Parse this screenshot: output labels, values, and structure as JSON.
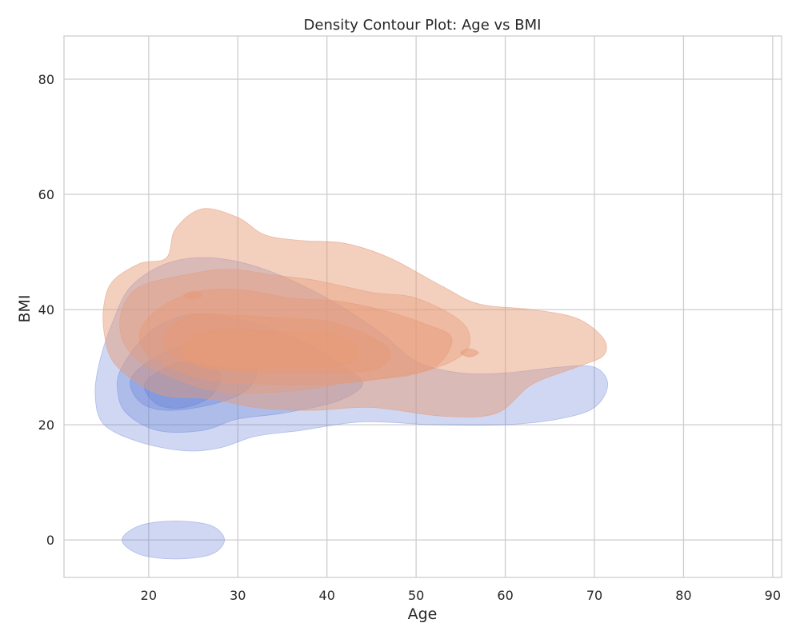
{
  "chart_data": {
    "type": "contour",
    "title": "Density Contour Plot: Age vs BMI",
    "xlabel": "Age",
    "ylabel": "BMI",
    "xlim": [
      10.5,
      91
    ],
    "ylim": [
      -6.5,
      87.5
    ],
    "xticks": [
      20,
      30,
      40,
      50,
      60,
      70,
      80,
      90
    ],
    "yticks": [
      0,
      20,
      40,
      60,
      80
    ],
    "grid": true,
    "legend": "none",
    "series": [
      {
        "color": "#6a84d8",
        "levels": [
          {
            "opacity": 0.32,
            "polygons": [
              [
                [
                  16,
                  38
                ],
                [
                  18,
                  44
                ],
                [
                  22,
                  48
                ],
                [
                  27,
                  49
                ],
                [
                  33,
                  47
                ],
                [
                  40,
                  42
                ],
                [
                  46,
                  36
                ],
                [
                  50,
                  31
                ],
                [
                  55,
                  29
                ],
                [
                  60,
                  29
                ],
                [
                  66,
                  30
                ],
                [
                  70,
                  30
                ],
                [
                  71.5,
                  27
                ],
                [
                  70,
                  23
                ],
                [
                  66,
                  21
                ],
                [
                  60,
                  20
                ],
                [
                  52,
                  20
                ],
                [
                  44,
                  20.5
                ],
                [
                  37,
                  19
                ],
                [
                  32,
                  18
                ],
                [
                  28,
                  16
                ],
                [
                  24,
                  15.5
                ],
                [
                  19,
                  17
                ],
                [
                  15,
                  20
                ],
                [
                  14,
                  25
                ],
                [
                  14.5,
                  31
                ]
              ],
              [
                [
                  17,
                  0
                ],
                [
                  19,
                  2.5
                ],
                [
                  23,
                  3.3
                ],
                [
                  27,
                  2.5
                ],
                [
                  28.5,
                  0
                ],
                [
                  27,
                  -2.5
                ],
                [
                  23,
                  -3.3
                ],
                [
                  19,
                  -2.5
                ]
              ]
            ]
          },
          {
            "opacity": 0.32,
            "polygons": [
              [
                [
                  17,
                  30
                ],
                [
                  20,
                  36
                ],
                [
                  24,
                  39
                ],
                [
                  28,
                  39
                ],
                [
                  33,
                  37
                ],
                [
                  38,
                  34
                ],
                [
                  42,
                  30
                ],
                [
                  44,
                  27
                ],
                [
                  41,
                  24
                ],
                [
                  35,
                  22
                ],
                [
                  30,
                  21
                ],
                [
                  26,
                  19
                ],
                [
                  21,
                  19
                ],
                [
                  17.5,
                  22
                ],
                [
                  16.5,
                  26
                ]
              ]
            ]
          },
          {
            "opacity": 0.36,
            "polygons": [
              [
                [
                  18,
                  28
                ],
                [
                  21,
                  32
                ],
                [
                  25,
                  34
                ],
                [
                  29,
                  33
                ],
                [
                  32,
                  30
                ],
                [
                  31,
                  26
                ],
                [
                  27,
                  23.5
                ],
                [
                  22,
                  22.5
                ],
                [
                  19,
                  24
                ]
              ]
            ]
          },
          {
            "opacity": 0.4,
            "polygons": [
              [
                [
                  19.5,
                  27
                ],
                [
                  22,
                  30
                ],
                [
                  25,
                  31
                ],
                [
                  28,
                  29
                ],
                [
                  27,
                  25
                ],
                [
                  24,
                  23
                ],
                [
                  21,
                  23.5
                ]
              ]
            ]
          }
        ]
      },
      {
        "color": "#e69a77",
        "levels": [
          {
            "opacity": 0.48,
            "polygons": [
              [
                [
                  16,
                  45
                ],
                [
                  19,
                  48
                ],
                [
                  22,
                  49
                ],
                [
                  23,
                  54
                ],
                [
                  26,
                  57.5
                ],
                [
                  30,
                  56
                ],
                [
                  33,
                  53
                ],
                [
                  37,
                  52
                ],
                [
                  42,
                  51.5
                ],
                [
                  47,
                  49
                ],
                [
                  53,
                  44
                ],
                [
                  57,
                  41
                ],
                [
                  63,
                  40
                ],
                [
                  68,
                  38.5
                ],
                [
                  71,
                  35
                ],
                [
                  71,
                  32
                ],
                [
                  68,
                  30
                ],
                [
                  63,
                  27
                ],
                [
                  59,
                  22
                ],
                [
                  53,
                  21.5
                ],
                [
                  45,
                  23
                ],
                [
                  38,
                  22.5
                ],
                [
                  32,
                  23
                ],
                [
                  27,
                  24.5
                ],
                [
                  22,
                  25
                ],
                [
                  19,
                  27
                ],
                [
                  16,
                  31
                ],
                [
                  15,
                  36
                ],
                [
                  15,
                  41
                ]
              ]
            ]
          },
          {
            "opacity": 0.4,
            "polygons": [
              [
                [
                  19,
                  44
                ],
                [
                  24,
                  46
                ],
                [
                  29,
                  47
                ],
                [
                  34,
                  46
                ],
                [
                  39,
                  45
                ],
                [
                  45,
                  43
                ],
                [
                  50,
                  42
                ],
                [
                  55,
                  38
                ],
                [
                  56,
                  34
                ],
                [
                  54,
                  31
                ],
                [
                  49,
                  28.5
                ],
                [
                  43,
                  27.5
                ],
                [
                  37,
                  26
                ],
                [
                  31,
                  25.5
                ],
                [
                  27,
                  26
                ],
                [
                  23,
                  28
                ],
                [
                  19,
                  31
                ],
                [
                  17,
                  35
                ],
                [
                  17,
                  40
                ]
              ]
            ]
          },
          {
            "opacity": 0.45,
            "polygons": [
              [
                [
                  21,
                  40
                ],
                [
                  25,
                  43
                ],
                [
                  30,
                  43.5
                ],
                [
                  36,
                  42
                ],
                [
                  41,
                  41.5
                ],
                [
                  46,
                  40
                ],
                [
                  51,
                  37.5
                ],
                [
                  54,
                  35
                ],
                [
                  52,
                  30
                ],
                [
                  46,
                  28
                ],
                [
                  40,
                  27
                ],
                [
                  34,
                  27
                ],
                [
                  28,
                  27.5
                ],
                [
                  24,
                  29
                ],
                [
                  20,
                  32
                ],
                [
                  19,
                  36
                ]
              ]
            ]
          },
          {
            "opacity": 0.5,
            "polygons": [
              [
                [
                  22,
                  36
                ],
                [
                  25,
                  39
                ],
                [
                  30,
                  39
                ],
                [
                  35,
                  38.5
                ],
                [
                  40,
                  38
                ],
                [
                  44,
                  36
                ],
                [
                  47,
                  33
                ],
                [
                  46,
                  30
                ],
                [
                  42,
                  29
                ],
                [
                  37,
                  29
                ],
                [
                  32,
                  29
                ],
                [
                  28,
                  30
                ],
                [
                  24,
                  31
                ],
                [
                  22,
                  33
                ]
              ]
            ]
          },
          {
            "opacity": 0.55,
            "polygons": [
              [
                [
                  24,
                  34
                ],
                [
                  26,
                  36
                ],
                [
                  30,
                  36.5
                ],
                [
                  35,
                  36
                ],
                [
                  40,
                  36
                ],
                [
                  43,
                  34
                ],
                [
                  43,
                  31
                ],
                [
                  39,
                  30
                ],
                [
                  34,
                  30
                ],
                [
                  30,
                  29.5
                ],
                [
                  26,
                  30
                ],
                [
                  24,
                  32
                ]
              ]
            ]
          },
          {
            "opacity": 0.45,
            "polygons": [
              [
                [
                  24,
                  42.5
                ],
                [
                  25,
                  43.2
                ],
                [
                  26,
                  42.5
                ],
                [
                  25,
                  41.8
                ]
              ]
            ]
          },
          {
            "opacity": 0.55,
            "polygons": [
              [
                [
                  55,
                  32.5
                ],
                [
                  56,
                  33.2
                ],
                [
                  57,
                  32.5
                ],
                [
                  56,
                  31.8
                ]
              ]
            ]
          }
        ]
      }
    ]
  }
}
